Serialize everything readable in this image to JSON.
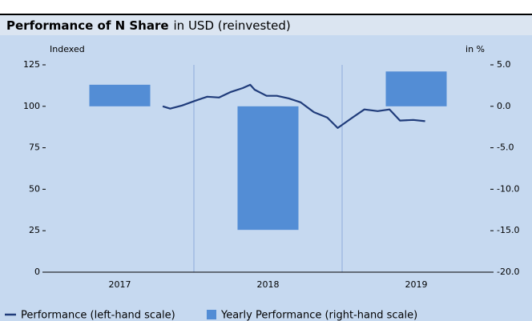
{
  "chart_data": {
    "type": "bar",
    "title": "Performance of N Share",
    "subtitle": "in USD (reinvested)",
    "y_label": "Indexed",
    "y2_label": "in %",
    "categories": [
      "2017",
      "2018",
      "2019"
    ],
    "xlim": [
      2017,
      2020
    ],
    "ylim": [
      0,
      125
    ],
    "yticks": [
      0,
      25,
      50,
      75,
      100,
      125
    ],
    "y2lim": [
      -20,
      5
    ],
    "y2ticks": [
      {
        "value": -20,
        "label": "-20.0"
      },
      {
        "value": -15,
        "label": "-15.0"
      },
      {
        "value": -10,
        "label": "-10.0"
      },
      {
        "value": -5,
        "label": "-5.0"
      },
      {
        "value": 0,
        "label": "0.0"
      },
      {
        "value": 5,
        "label": "5.0"
      }
    ],
    "series": [
      {
        "name": "Performance (left-hand scale)",
        "type": "line",
        "color": "#1f3b7a",
        "x": [
          2017.79,
          2017.84,
          2017.92,
          2018.01,
          2018.09,
          2018.17,
          2018.25,
          2018.33,
          2018.38,
          2018.41,
          2018.49,
          2018.56,
          2018.64,
          2018.72,
          2018.81,
          2018.9,
          2018.97,
          2019.07,
          2019.15,
          2019.24,
          2019.32,
          2019.39,
          2019.48,
          2019.56
        ],
        "values": [
          100,
          98.6,
          100.5,
          103.4,
          105.8,
          105.3,
          108.7,
          111,
          113,
          110,
          106.3,
          106.3,
          104.8,
          102.4,
          96.5,
          93.2,
          86.9,
          93.2,
          98.1,
          97.1,
          98.1,
          91.4,
          91.8,
          91
        ]
      },
      {
        "name": "Yearly Performance (right-hand scale)",
        "type": "bar",
        "axis": "y2",
        "color": "#538dd5",
        "values": [
          2.6,
          -14.9,
          4.2
        ]
      }
    ]
  }
}
